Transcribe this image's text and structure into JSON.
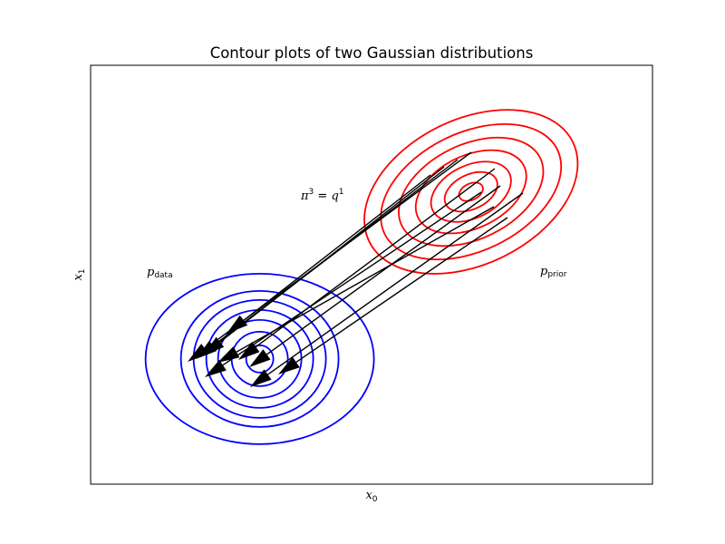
{
  "chart_data": {
    "type": "contour",
    "title": "Contour plots of two Gaussian distributions",
    "xlabel": {
      "main": "x",
      "sub": "0"
    },
    "ylabel": {
      "main": "x",
      "sub": "1"
    },
    "ticks": "none",
    "grid": false,
    "annotation": {
      "text": "π³ = q¹",
      "lhs": "π",
      "lhs_sup": "3",
      "eq": " = ",
      "rhs": "q",
      "rhs_sup": "1"
    },
    "distributions": [
      {
        "label": {
          "main": "p",
          "sub": "data"
        },
        "color": "#0000ff",
        "center": [
          0.301,
          0.299
        ],
        "contours": 7,
        "shape": "circular"
      },
      {
        "label": {
          "main": "p",
          "sub": "prior"
        },
        "color": "#ff0000",
        "center": [
          0.677,
          0.698
        ],
        "contours": 7,
        "shape": "tilted ellipse, rising to the right"
      }
    ],
    "arrows": {
      "color": "#000000",
      "count": 10,
      "direction": "from p_prior region toward p_data region"
    }
  }
}
